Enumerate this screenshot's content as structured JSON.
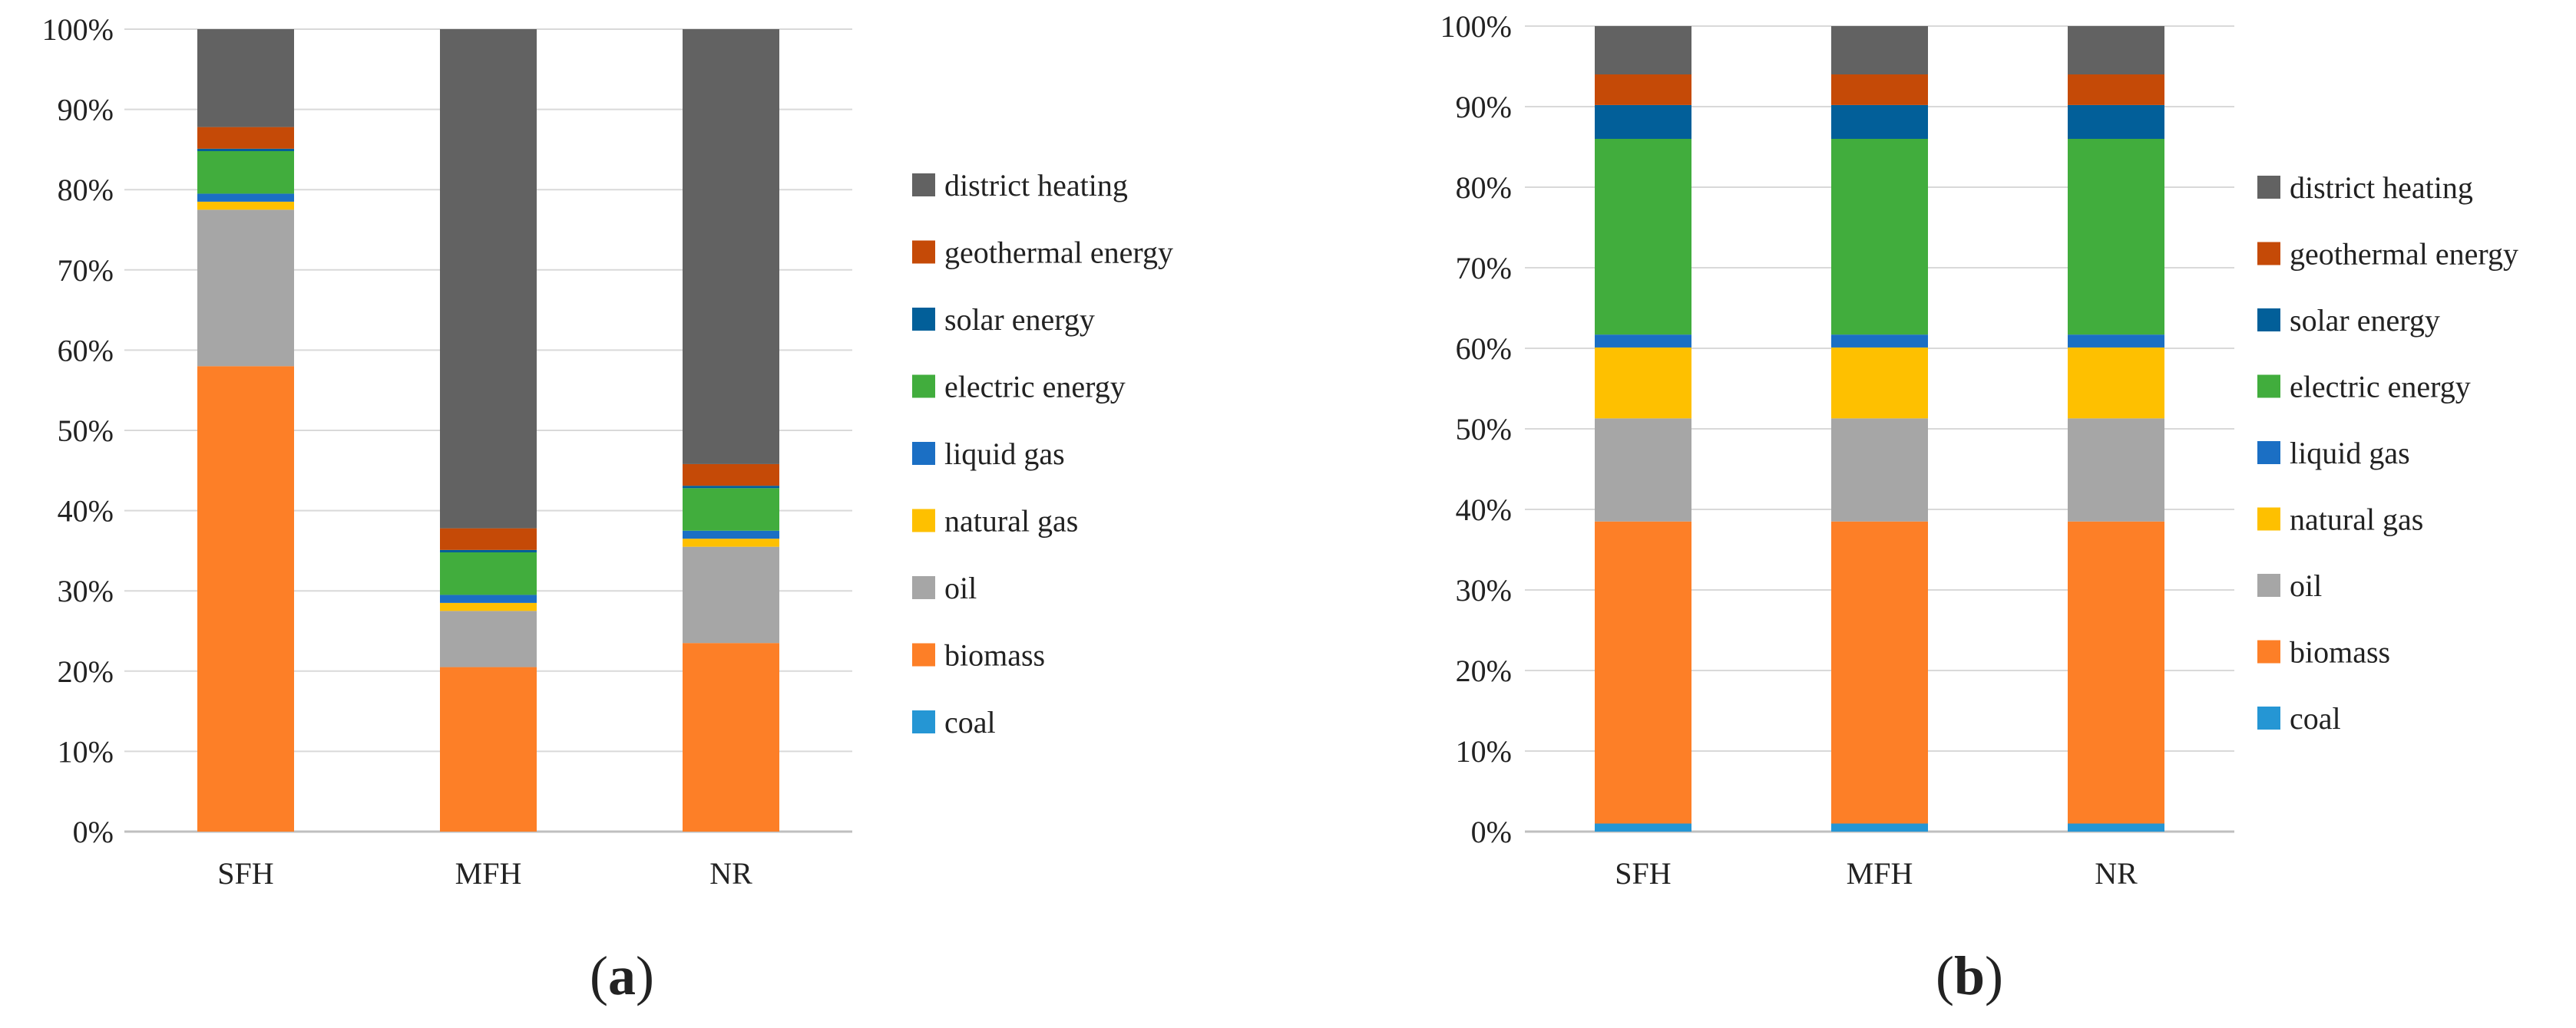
{
  "colors": {
    "coal": "#2596d4",
    "biomass": "#fd7f27",
    "oil": "#a6a6a6",
    "natural gas": "#fec000",
    "liquid gas": "#1b6fc4",
    "electric energy": "#41ad3d",
    "solar energy": "#025f99",
    "geothermal energy": "#c54a07",
    "district heating": "#626262",
    "grid": "#d9d9d9",
    "axis": "#bfbfbf"
  },
  "chart_data": [
    {
      "type": "bar",
      "stacked": true,
      "panel_label": "a",
      "categories": [
        "SFH",
        "MFH",
        "NR"
      ],
      "ylim": [
        0,
        100
      ],
      "yticks": [
        "0%",
        "10%",
        "20%",
        "30%",
        "40%",
        "50%",
        "60%",
        "70%",
        "80%",
        "90%",
        "100%"
      ],
      "legend_position": "right",
      "legend": [
        "district heating",
        "geothermal energy",
        "solar energy",
        "electric energy",
        "liquid gas",
        "natural gas",
        "oil",
        "biomass",
        "coal"
      ],
      "series": [
        {
          "name": "coal",
          "values": [
            0,
            0,
            0
          ]
        },
        {
          "name": "biomass",
          "values": [
            58,
            20.5,
            23.5
          ]
        },
        {
          "name": "oil",
          "values": [
            19.5,
            7,
            12
          ]
        },
        {
          "name": "natural gas",
          "values": [
            1,
            1,
            1
          ]
        },
        {
          "name": "liquid gas",
          "values": [
            1,
            1,
            1
          ]
        },
        {
          "name": "electric energy",
          "values": [
            5.3,
            5.3,
            5.3
          ]
        },
        {
          "name": "solar energy",
          "values": [
            0.3,
            0.3,
            0.3
          ]
        },
        {
          "name": "geothermal energy",
          "values": [
            2.7,
            2.7,
            2.7
          ]
        },
        {
          "name": "district heating",
          "values": [
            12.2,
            62.2,
            54.2
          ]
        }
      ]
    },
    {
      "type": "bar",
      "stacked": true,
      "panel_label": "b",
      "categories": [
        "SFH",
        "MFH",
        "NR"
      ],
      "ylim": [
        0,
        100
      ],
      "yticks": [
        "0%",
        "10%",
        "20%",
        "30%",
        "40%",
        "50%",
        "60%",
        "70%",
        "80%",
        "90%",
        "100%"
      ],
      "legend_position": "right",
      "legend": [
        "district heating",
        "geothermal energy",
        "solar energy",
        "electric energy",
        "liquid gas",
        "natural gas",
        "oil",
        "biomass",
        "coal"
      ],
      "series": [
        {
          "name": "coal",
          "values": [
            1,
            1,
            1
          ]
        },
        {
          "name": "biomass",
          "values": [
            37.5,
            37.5,
            37.5
          ]
        },
        {
          "name": "oil",
          "values": [
            12.8,
            12.8,
            12.8
          ]
        },
        {
          "name": "natural gas",
          "values": [
            8.8,
            8.8,
            8.8
          ]
        },
        {
          "name": "liquid gas",
          "values": [
            1.6,
            1.6,
            1.6
          ]
        },
        {
          "name": "electric energy",
          "values": [
            24.3,
            24.3,
            24.3
          ]
        },
        {
          "name": "solar energy",
          "values": [
            4.2,
            4.2,
            4.2
          ]
        },
        {
          "name": "geothermal energy",
          "values": [
            3.8,
            3.8,
            3.8
          ]
        },
        {
          "name": "district heating",
          "values": [
            6,
            6,
            6
          ]
        }
      ]
    }
  ]
}
